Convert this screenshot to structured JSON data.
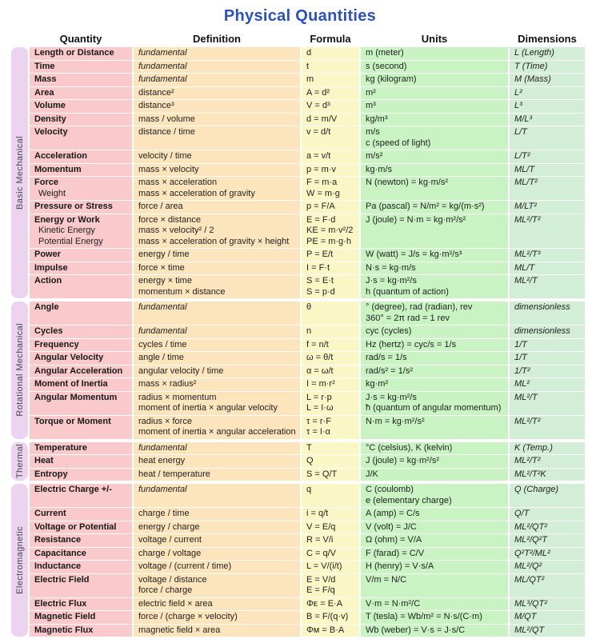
{
  "title": "Physical Quantities",
  "colors": {
    "title": "#2b52ba",
    "group_band": "#ecd4f1",
    "quantity_column": "#fac9cb",
    "definition_column": "#fce4bd",
    "formula_column": "#fbf6c6",
    "units_column": "#c9f3c3",
    "dimensions_column": "#d3eed6"
  },
  "chart_data": {
    "type": "table",
    "title": "Physical Quantities",
    "columns": [
      "Quantity",
      "Definition",
      "Formula",
      "Units",
      "Dimensions"
    ],
    "groups": [
      {
        "label": "Basic Mechanical",
        "rows": [
          {
            "quantity": [
              "Length or Distance"
            ],
            "definition": [
              "fundamental"
            ],
            "formula": [
              "d"
            ],
            "units": [
              "m (meter)"
            ],
            "dimensions": "L (Length)"
          },
          {
            "quantity": [
              "Time"
            ],
            "definition": [
              "fundamental"
            ],
            "formula": [
              "t"
            ],
            "units": [
              "s (second)"
            ],
            "dimensions": "T (Time)"
          },
          {
            "quantity": [
              "Mass"
            ],
            "definition": [
              "fundamental"
            ],
            "formula": [
              "m"
            ],
            "units": [
              "kg (kilogram)"
            ],
            "dimensions": "M (Mass)"
          },
          {
            "quantity": [
              "Area"
            ],
            "definition": [
              "distance²"
            ],
            "formula": [
              "A = d²"
            ],
            "units": [
              "m²"
            ],
            "dimensions": "L²"
          },
          {
            "quantity": [
              "Volume"
            ],
            "definition": [
              "distance³"
            ],
            "formula": [
              "V = d³"
            ],
            "units": [
              "m³"
            ],
            "dimensions": "L³"
          },
          {
            "quantity": [
              "Density"
            ],
            "definition": [
              "mass / volume"
            ],
            "formula": [
              "d = m/V"
            ],
            "units": [
              "kg/m³"
            ],
            "dimensions": "M/L³"
          },
          {
            "quantity": [
              "Velocity"
            ],
            "definition": [
              "distance / time"
            ],
            "formula": [
              "v = d/t"
            ],
            "units": [
              "m/s",
              "c (speed of light)"
            ],
            "dimensions": "L/T"
          },
          {
            "quantity": [
              "Acceleration"
            ],
            "definition": [
              "velocity / time"
            ],
            "formula": [
              "a = v/t"
            ],
            "units": [
              "m/s²"
            ],
            "dimensions": "L/T²"
          },
          {
            "quantity": [
              "Momentum"
            ],
            "definition": [
              "mass × velocity"
            ],
            "formula": [
              "p = m·v"
            ],
            "units": [
              "kg·m/s"
            ],
            "dimensions": "ML/T"
          },
          {
            "quantity": [
              "Force",
              "Weight"
            ],
            "definition": [
              "mass × acceleration",
              "mass × acceleration of gravity"
            ],
            "formula": [
              "F = m·a",
              "W = m·g"
            ],
            "units": [
              "N (newton) = kg·m/s²"
            ],
            "dimensions": "ML/T²"
          },
          {
            "quantity": [
              "Pressure or Stress"
            ],
            "definition": [
              "force / area"
            ],
            "formula": [
              "p = F/A"
            ],
            "units": [
              "Pa (pascal) = N/m² = kg/(m·s²)"
            ],
            "dimensions": "M/LT²"
          },
          {
            "quantity": [
              "Energy or Work",
              "Kinetic Energy",
              "Potential Energy"
            ],
            "definition": [
              "force × distance",
              "mass × velocity² / 2",
              "mass × acceleration of gravity × height"
            ],
            "formula": [
              "E = F·d",
              "KE = m·v²/2",
              "PE = m·g·h"
            ],
            "units": [
              "J (joule) = N·m = kg·m²/s²"
            ],
            "dimensions": "ML²/T²"
          },
          {
            "quantity": [
              "Power"
            ],
            "definition": [
              "energy / time"
            ],
            "formula": [
              "P = E/t"
            ],
            "units": [
              "W (watt) = J/s = kg·m²/s³"
            ],
            "dimensions": "ML²/T³"
          },
          {
            "quantity": [
              "Impulse"
            ],
            "definition": [
              "force × time"
            ],
            "formula": [
              "I = F·t"
            ],
            "units": [
              "N·s = kg·m/s"
            ],
            "dimensions": "ML/T"
          },
          {
            "quantity": [
              "Action"
            ],
            "definition": [
              "energy × time",
              "momentum × distance"
            ],
            "formula": [
              "S = E·t",
              "S = p·d"
            ],
            "units": [
              "J·s = kg·m²/s",
              "h (quantum of action)"
            ],
            "dimensions": "ML²/T"
          }
        ]
      },
      {
        "label": "Rotational Mechanical",
        "rows": [
          {
            "quantity": [
              "Angle"
            ],
            "definition": [
              "fundamental"
            ],
            "formula": [
              "θ"
            ],
            "units": [
              "° (degree), rad (radian), rev",
              "360° = 2π rad = 1 rev"
            ],
            "dimensions": "dimensionless"
          },
          {
            "quantity": [
              "Cycles"
            ],
            "definition": [
              "fundamental"
            ],
            "formula": [
              "n"
            ],
            "units": [
              "cyc (cycles)"
            ],
            "dimensions": "dimensionless"
          },
          {
            "quantity": [
              "Frequency"
            ],
            "definition": [
              "cycles / time"
            ],
            "formula": [
              "f = n/t"
            ],
            "units": [
              "Hz (hertz) = cyc/s = 1/s"
            ],
            "dimensions": "1/T"
          },
          {
            "quantity": [
              "Angular Velocity"
            ],
            "definition": [
              "angle / time"
            ],
            "formula": [
              "ω = θ/t"
            ],
            "units": [
              "rad/s = 1/s"
            ],
            "dimensions": "1/T"
          },
          {
            "quantity": [
              "Angular Acceleration"
            ],
            "definition": [
              "angular velocity / time"
            ],
            "formula": [
              "α = ω/t"
            ],
            "units": [
              "rad/s² = 1/s²"
            ],
            "dimensions": "1/T²"
          },
          {
            "quantity": [
              "Moment of Inertia"
            ],
            "definition": [
              "mass × radius²"
            ],
            "formula": [
              "I = m·r²"
            ],
            "units": [
              "kg·m²"
            ],
            "dimensions": "ML²"
          },
          {
            "quantity": [
              "Angular Momentum"
            ],
            "definition": [
              "radius × momentum",
              "moment of inertia × angular velocity"
            ],
            "formula": [
              "L = r·p",
              "L = I·ω"
            ],
            "units": [
              "J·s = kg·m²/s",
              "ħ (quantum of angular momentum)"
            ],
            "dimensions": "ML²/T"
          },
          {
            "quantity": [
              "Torque or Moment"
            ],
            "definition": [
              "radius × force",
              "moment of inertia × angular acceleration"
            ],
            "formula": [
              "τ = r·F",
              "τ = I·α"
            ],
            "units": [
              "N·m = kg·m²/s²"
            ],
            "dimensions": "ML²/T²"
          }
        ]
      },
      {
        "label": "Thermal",
        "rows": [
          {
            "quantity": [
              "Temperature"
            ],
            "definition": [
              "fundamental"
            ],
            "formula": [
              "T"
            ],
            "units": [
              "°C (celsius), K (kelvin)"
            ],
            "dimensions": "K (Temp.)"
          },
          {
            "quantity": [
              "Heat"
            ],
            "definition": [
              "heat energy"
            ],
            "formula": [
              "Q"
            ],
            "units": [
              "J (joule) = kg·m²/s²"
            ],
            "dimensions": "ML²/T²"
          },
          {
            "quantity": [
              "Entropy"
            ],
            "definition": [
              "heat / temperature"
            ],
            "formula": [
              "S = Q/T"
            ],
            "units": [
              "J/K"
            ],
            "dimensions": "ML²/T²K"
          }
        ]
      },
      {
        "label": "Electromagnetic",
        "rows": [
          {
            "quantity": [
              "Electric Charge +/-"
            ],
            "definition": [
              "fundamental"
            ],
            "formula": [
              "q"
            ],
            "units": [
              "C (coulomb)",
              "e (elementary charge)"
            ],
            "dimensions": "Q (Charge)"
          },
          {
            "quantity": [
              "Current"
            ],
            "definition": [
              "charge / time"
            ],
            "formula": [
              "i = q/t"
            ],
            "units": [
              "A (amp) = C/s"
            ],
            "dimensions": "Q/T"
          },
          {
            "quantity": [
              "Voltage or Potential"
            ],
            "definition": [
              "energy / charge"
            ],
            "formula": [
              "V = E/q"
            ],
            "units": [
              "V (volt) = J/C"
            ],
            "dimensions": "ML²/QT²"
          },
          {
            "quantity": [
              "Resistance"
            ],
            "definition": [
              "voltage / current"
            ],
            "formula": [
              "R = V/i"
            ],
            "units": [
              "Ω (ohm) = V/A"
            ],
            "dimensions": "ML²/Q²T"
          },
          {
            "quantity": [
              "Capacitance"
            ],
            "definition": [
              "charge / voltage"
            ],
            "formula": [
              "C = q/V"
            ],
            "units": [
              "F (farad) = C/V"
            ],
            "dimensions": "Q²T²/ML²"
          },
          {
            "quantity": [
              "Inductance"
            ],
            "definition": [
              "voltage / (current / time)"
            ],
            "formula": [
              "L = V/(i/t)"
            ],
            "units": [
              "H (henry) = V·s/A"
            ],
            "dimensions": "ML²/Q²"
          },
          {
            "quantity": [
              "Electric Field"
            ],
            "definition": [
              "voltage / distance",
              "force / charge"
            ],
            "formula": [
              "E = V/d",
              "E = F/q"
            ],
            "units": [
              "V/m = N/C"
            ],
            "dimensions": "ML/QT²"
          },
          {
            "quantity": [
              "Electric Flux"
            ],
            "definition": [
              "electric field × area"
            ],
            "formula": [
              "Φᴇ = E·A"
            ],
            "units": [
              "V·m = N·m²/C"
            ],
            "dimensions": "ML³/QT²"
          },
          {
            "quantity": [
              "Magnetic Field"
            ],
            "definition": [
              "force / (charge × velocity)"
            ],
            "formula": [
              "B = F/(q·v)"
            ],
            "units": [
              "T (tesla) = Wb/m² = N·s/(C·m)"
            ],
            "dimensions": "M/QT"
          },
          {
            "quantity": [
              "Magnetic Flux"
            ],
            "definition": [
              "magnetic field × area"
            ],
            "formula": [
              "Φᴍ = B·A"
            ],
            "units": [
              "Wb (weber) = V·s = J·s/C"
            ],
            "dimensions": "ML²/QT"
          }
        ]
      }
    ]
  }
}
